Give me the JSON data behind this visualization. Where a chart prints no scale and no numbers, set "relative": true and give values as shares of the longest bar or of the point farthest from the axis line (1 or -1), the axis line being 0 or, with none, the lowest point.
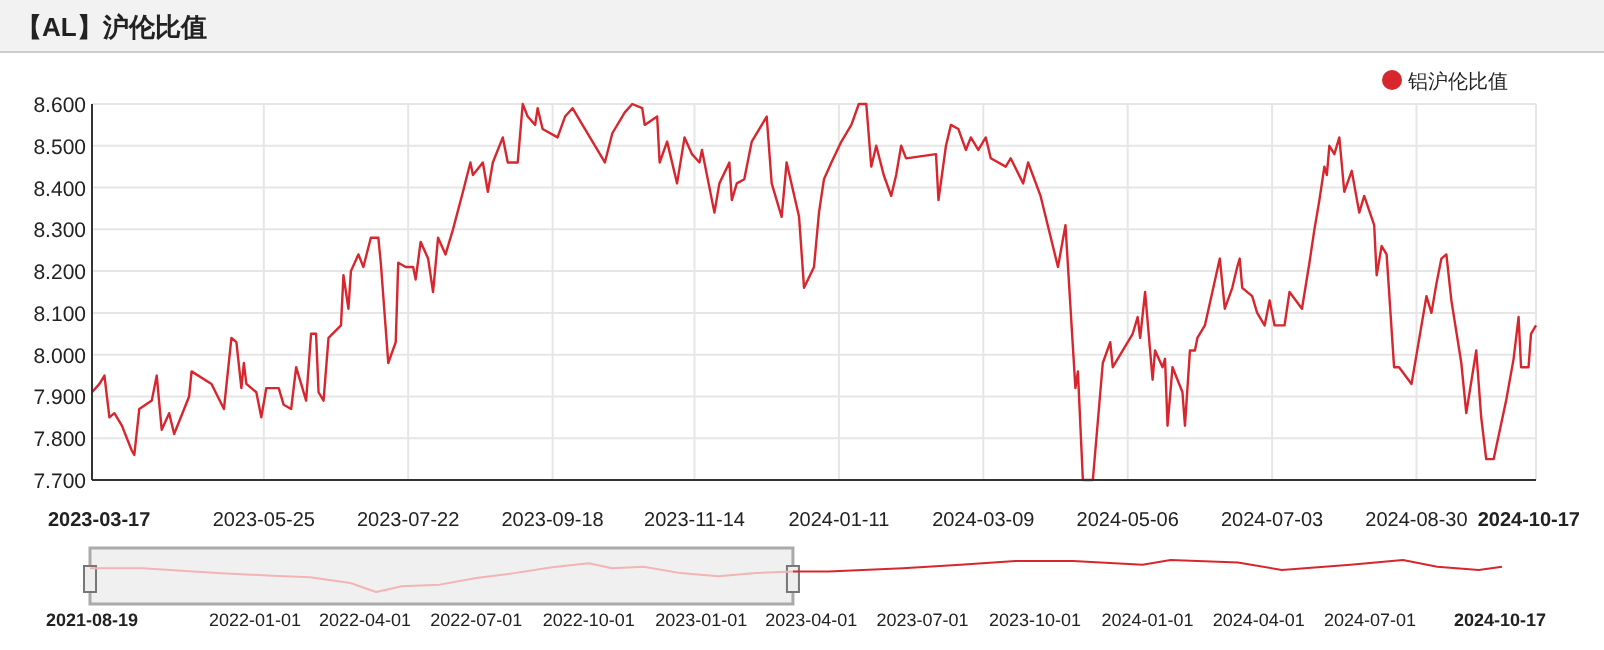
{
  "chart_data": [
    {
      "type": "line",
      "title": "【AL】沪伦比值",
      "legend": "top right",
      "grid": true,
      "xlim": [
        "2023-03-17",
        "2024-10-17"
      ],
      "ylim": [
        7.7,
        8.6
      ],
      "xticks": [
        "2023-03-17",
        "2023-05-25",
        "2023-07-22",
        "2023-09-18",
        "2023-11-14",
        "2024-01-11",
        "2024-03-09",
        "2024-05-06",
        "2024-07-03",
        "2024-08-30",
        "2024-10-17"
      ],
      "yticks": [
        {
          "value": 7.7,
          "label": "7.700"
        },
        {
          "value": 7.8,
          "label": "7.800"
        },
        {
          "value": 7.9,
          "label": "7.900"
        },
        {
          "value": 8.0,
          "label": "8.000"
        },
        {
          "value": 8.1,
          "label": "8.100"
        },
        {
          "value": 8.2,
          "label": "8.200"
        },
        {
          "value": 8.3,
          "label": "8.300"
        },
        {
          "value": 8.4,
          "label": "8.400"
        },
        {
          "value": 8.5,
          "label": "8.500"
        },
        {
          "value": 8.6,
          "label": "8.600"
        }
      ],
      "x": [
        "2023-03-17",
        "2023-03-20",
        "2023-03-22",
        "2023-03-24",
        "2023-03-26",
        "2023-03-29",
        "2023-04-02",
        "2023-04-03",
        "2023-04-05",
        "2023-04-10",
        "2023-04-12",
        "2023-04-14",
        "2023-04-17",
        "2023-04-19",
        "2023-04-25",
        "2023-04-26",
        "2023-05-04",
        "2023-05-09",
        "2023-05-12",
        "2023-05-14",
        "2023-05-16",
        "2023-05-17",
        "2023-05-18",
        "2023-05-22",
        "2023-05-24",
        "2023-05-26",
        "2023-05-31",
        "2023-06-02",
        "2023-06-05",
        "2023-06-07",
        "2023-06-09",
        "2023-06-11",
        "2023-06-13",
        "2023-06-15",
        "2023-06-16",
        "2023-06-18",
        "2023-06-20",
        "2023-06-25",
        "2023-06-26",
        "2023-06-28",
        "2023-06-29",
        "2023-07-02",
        "2023-07-04",
        "2023-07-07",
        "2023-07-10",
        "2023-07-11",
        "2023-07-14",
        "2023-07-17",
        "2023-07-18",
        "2023-07-21",
        "2023-07-24",
        "2023-07-25",
        "2023-07-27",
        "2023-07-30",
        "2023-08-01",
        "2023-08-03",
        "2023-08-06",
        "2023-08-09",
        "2023-08-13",
        "2023-08-16",
        "2023-08-17",
        "2023-08-21",
        "2023-08-23",
        "2023-08-25",
        "2023-08-29",
        "2023-08-31",
        "2023-09-04",
        "2023-09-06",
        "2023-09-08",
        "2023-09-11",
        "2023-09-12",
        "2023-09-14",
        "2023-09-20",
        "2023-09-23",
        "2023-09-26",
        "2023-10-09",
        "2023-10-12",
        "2023-10-17",
        "2023-10-20",
        "2023-10-24",
        "2023-10-25",
        "2023-10-30",
        "2023-10-31",
        "2023-11-03",
        "2023-11-07",
        "2023-11-10",
        "2023-11-13",
        "2023-11-16",
        "2023-11-17",
        "2023-11-22",
        "2023-11-24",
        "2023-11-28",
        "2023-11-29",
        "2023-12-01",
        "2023-12-04",
        "2023-12-07",
        "2023-12-13",
        "2023-12-15",
        "2023-12-19",
        "2023-12-21",
        "2023-12-26",
        "2023-12-28",
        "2024-01-01",
        "2024-01-03",
        "2024-01-05",
        "2024-01-08",
        "2024-01-12",
        "2024-01-16",
        "2024-01-19",
        "2024-01-22",
        "2024-01-24",
        "2024-01-26",
        "2024-01-29",
        "2024-02-01",
        "2024-02-03",
        "2024-02-05",
        "2024-02-07",
        "2024-02-19",
        "2024-02-20",
        "2024-02-23",
        "2024-02-25",
        "2024-02-28",
        "2024-03-02",
        "2024-03-04",
        "2024-03-07",
        "2024-03-10",
        "2024-03-12",
        "2024-03-18",
        "2024-03-20",
        "2024-03-25",
        "2024-03-27",
        "2024-04-01",
        "2024-04-08",
        "2024-04-11",
        "2024-04-15",
        "2024-04-16",
        "2024-04-18",
        "2024-04-22",
        "2024-04-26",
        "2024-04-29",
        "2024-04-30",
        "2024-05-08",
        "2024-05-10",
        "2024-05-11",
        "2024-05-13",
        "2024-05-16",
        "2024-05-17",
        "2024-05-20",
        "2024-05-21",
        "2024-05-22",
        "2024-05-24",
        "2024-05-28",
        "2024-05-29",
        "2024-05-31",
        "2024-06-02",
        "2024-06-03",
        "2024-06-06",
        "2024-06-12",
        "2024-06-14",
        "2024-06-17",
        "2024-06-19",
        "2024-06-20",
        "2024-06-21",
        "2024-06-25",
        "2024-06-27",
        "2024-06-30",
        "2024-07-02",
        "2024-07-04",
        "2024-07-08",
        "2024-07-10",
        "2024-07-15",
        "2024-07-18",
        "2024-07-20",
        "2024-07-22",
        "2024-07-24",
        "2024-07-25",
        "2024-07-26",
        "2024-07-28",
        "2024-07-30",
        "2024-08-01",
        "2024-08-04",
        "2024-08-07",
        "2024-08-09",
        "2024-08-13",
        "2024-08-14",
        "2024-08-16",
        "2024-08-18",
        "2024-08-21",
        "2024-08-23",
        "2024-08-28",
        "2024-08-30",
        "2024-09-01",
        "2024-09-03",
        "2024-09-05",
        "2024-09-07",
        "2024-09-09",
        "2024-09-11",
        "2024-09-13",
        "2024-09-17",
        "2024-09-19",
        "2024-09-23",
        "2024-09-25",
        "2024-09-27",
        "2024-09-30",
        "2024-10-05",
        "2024-10-08",
        "2024-10-10",
        "2024-10-11",
        "2024-10-14",
        "2024-10-15",
        "2024-10-17"
      ],
      "series": [
        {
          "name": "铝沪伦比值",
          "color": "#d7262d",
          "values": [
            7.91,
            7.93,
            7.95,
            7.85,
            7.86,
            7.83,
            7.77,
            7.76,
            7.87,
            7.89,
            7.95,
            7.82,
            7.86,
            7.81,
            7.9,
            7.96,
            7.93,
            7.87,
            8.04,
            8.03,
            7.92,
            7.98,
            7.93,
            7.91,
            7.85,
            7.92,
            7.92,
            7.88,
            7.87,
            7.97,
            7.93,
            7.89,
            8.05,
            8.05,
            7.91,
            7.89,
            8.04,
            8.07,
            8.19,
            8.11,
            8.2,
            8.24,
            8.21,
            8.28,
            8.28,
            8.22,
            7.98,
            8.03,
            8.22,
            8.21,
            8.21,
            8.18,
            8.27,
            8.23,
            8.15,
            8.28,
            8.24,
            8.3,
            8.39,
            8.46,
            8.43,
            8.46,
            8.39,
            8.46,
            8.52,
            8.46,
            8.46,
            8.6,
            8.57,
            8.55,
            8.59,
            8.54,
            8.52,
            8.57,
            8.59,
            8.46,
            8.53,
            8.58,
            8.6,
            8.59,
            8.55,
            8.57,
            8.46,
            8.51,
            8.41,
            8.52,
            8.48,
            8.46,
            8.49,
            8.34,
            8.41,
            8.46,
            8.37,
            8.41,
            8.42,
            8.51,
            8.57,
            8.41,
            8.33,
            8.46,
            8.33,
            8.16,
            8.21,
            8.34,
            8.42,
            8.46,
            8.51,
            8.55,
            8.6,
            8.6,
            8.45,
            8.5,
            8.43,
            8.38,
            8.43,
            8.5,
            8.47,
            8.48,
            8.37,
            8.5,
            8.55,
            8.54,
            8.49,
            8.52,
            8.49,
            8.52,
            8.47,
            8.45,
            8.47,
            8.41,
            8.46,
            8.38,
            8.21,
            8.31,
            7.92,
            7.96,
            7.7,
            7.7,
            7.98,
            8.03,
            7.97,
            8.05,
            8.09,
            8.04,
            8.15,
            7.94,
            8.01,
            7.97,
            7.99,
            7.83,
            7.97,
            7.91,
            7.83,
            8.01,
            8.01,
            8.04,
            8.07,
            8.23,
            8.11,
            8.16,
            8.21,
            8.23,
            8.16,
            8.14,
            8.1,
            8.07,
            8.13,
            8.07,
            8.07,
            8.15,
            8.11,
            8.22,
            8.3,
            8.37,
            8.45,
            8.43,
            8.5,
            8.48,
            8.52,
            8.39,
            8.44,
            8.34,
            8.38,
            8.31,
            8.19,
            8.26,
            8.24,
            7.97,
            7.97,
            7.93,
            8.0,
            8.07,
            8.14,
            8.1,
            8.17,
            8.23,
            8.24,
            8.13,
            7.98,
            7.86,
            8.01,
            7.85,
            7.75,
            7.75,
            7.89,
            7.99,
            8.09,
            7.97,
            7.97,
            8.05,
            8.07
          ]
        }
      ]
    },
    {
      "type": "line",
      "relative": true,
      "xlim": [
        "2021-08-19",
        "2024-10-17"
      ],
      "xticks": [
        "2021-08-19",
        "2022-01-01",
        "2022-04-01",
        "2022-07-01",
        "2022-10-01",
        "2023-01-01",
        "2023-04-01",
        "2023-07-01",
        "2023-10-01",
        "2024-01-01",
        "2024-04-01",
        "2024-07-01",
        "2024-10-17"
      ],
      "bands": [
        {
          "axis": "x",
          "from": "2021-08-19",
          "to": "2023-03-17",
          "color": "#aaaaaa"
        }
      ],
      "series": [
        {
          "color": "#f2b4b4",
          "x": [
            "2021-08-19",
            "2021-10-01",
            "2021-12-01",
            "2022-01-15",
            "2022-02-15",
            "2022-03-20",
            "2022-04-10",
            "2022-05-01",
            "2022-06-01",
            "2022-07-01",
            "2022-08-01",
            "2022-09-01",
            "2022-10-01",
            "2022-10-20",
            "2022-11-15",
            "2022-12-15",
            "2023-01-15",
            "2023-02-15",
            "2023-03-17"
          ],
          "values": [
            0.74,
            0.74,
            0.59,
            0.51,
            0.46,
            0.28,
            0,
            0.18,
            0.23,
            0.44,
            0.59,
            0.77,
            0.9,
            0.74,
            0.79,
            0.59,
            0.49,
            0.59,
            0.64
          ]
        },
        {
          "color": "#d7262d",
          "x": [
            "2023-03-17",
            "2023-04-15",
            "2023-06-15",
            "2023-08-01",
            "2023-09-15",
            "2023-11-01",
            "2023-12-28",
            "2024-01-20",
            "2024-03-15",
            "2024-04-20",
            "2024-06-15",
            "2024-07-28",
            "2024-08-25",
            "2024-09-28",
            "2024-10-17"
          ],
          "values": [
            0.64,
            0.64,
            0.74,
            0.85,
            0.97,
            0.97,
            0.85,
            1,
            0.92,
            0.69,
            0.85,
            1,
            0.79,
            0.69,
            0.79
          ]
        }
      ]
    }
  ]
}
